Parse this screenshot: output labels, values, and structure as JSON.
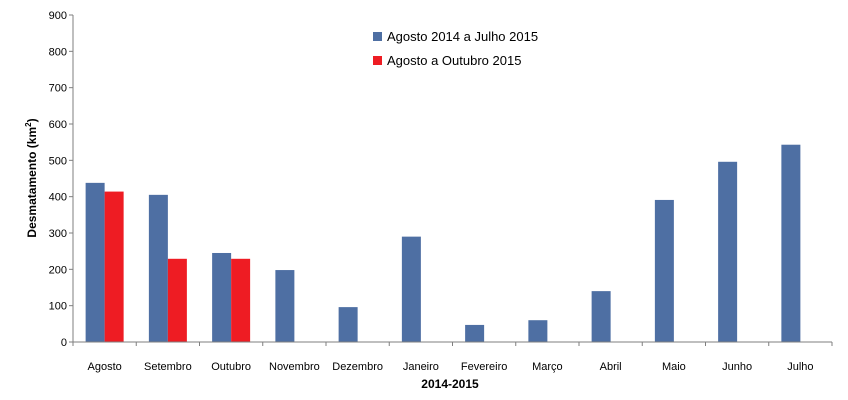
{
  "chart_data": {
    "type": "bar",
    "categories": [
      "Agosto",
      "Setembro",
      "Outubro",
      "Novembro",
      "Dezembro",
      "Janeiro",
      "Fevereiro",
      "Março",
      "Abril",
      "Maio",
      "Junho",
      "Julho"
    ],
    "series": [
      {
        "name": "Agosto 2014 a Julho 2015",
        "color": "#4e6fa3",
        "values": [
          438,
          405,
          245,
          198,
          96,
          290,
          47,
          60,
          140,
          391,
          496,
          543
        ]
      },
      {
        "name": "Agosto a Outubro 2015",
        "color": "#ee1c23",
        "values": [
          414,
          229,
          229,
          null,
          null,
          null,
          null,
          null,
          null,
          null,
          null,
          null
        ]
      }
    ],
    "xlabel": "2014-2015",
    "ylabel_main": "Desmatamento (km",
    "ylabel_sup": "2",
    "ylabel_close": ")",
    "ylim": [
      0,
      900
    ],
    "yticks": [
      0,
      100,
      200,
      300,
      400,
      500,
      600,
      700,
      800,
      900
    ],
    "grid": false,
    "legend_position": "top-center"
  }
}
